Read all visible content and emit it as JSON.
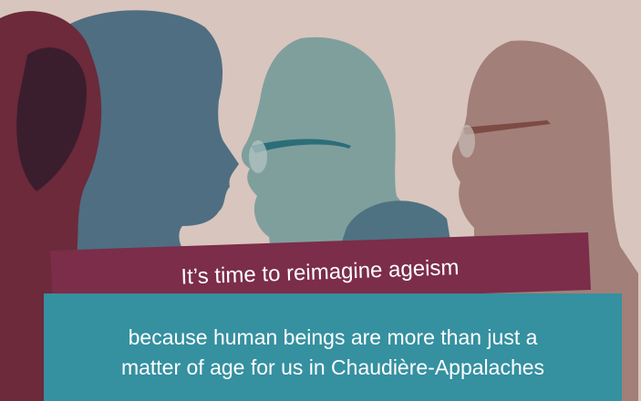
{
  "banner": {
    "title": "It’s time to reimagine ageism",
    "subtitle_lines": [
      "because human beings are more than just a",
      "matter of age for us in Chaudière-Appalaches"
    ]
  }
}
